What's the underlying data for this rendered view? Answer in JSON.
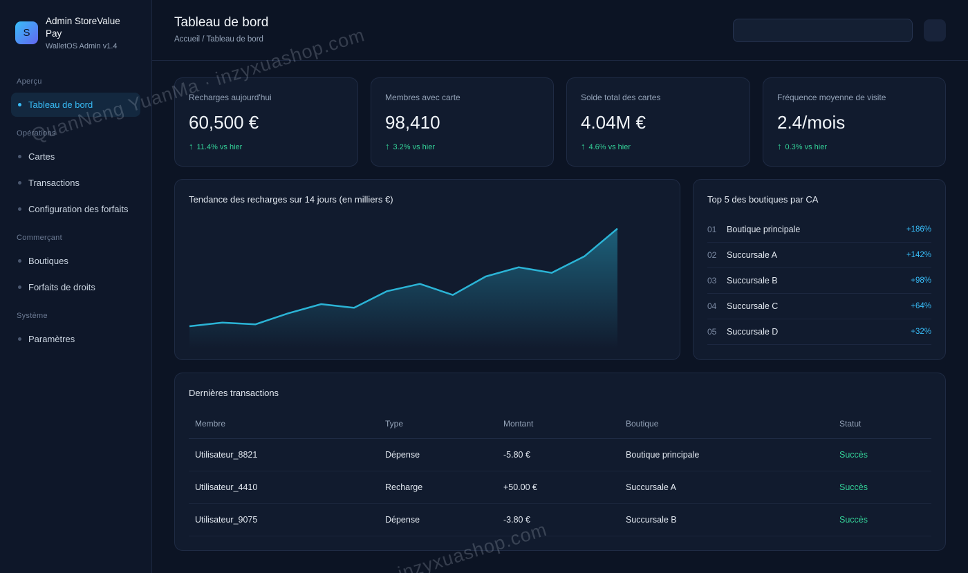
{
  "brand": {
    "logo_letter": "S",
    "name": "Admin StoreValue Pay",
    "subtitle": "WalletOS Admin v1.4"
  },
  "sidebar": {
    "sections": [
      {
        "label": "Aperçu",
        "items": [
          {
            "label": "Tableau de bord",
            "active": true
          }
        ]
      },
      {
        "label": "Opérations",
        "items": [
          {
            "label": "Cartes"
          },
          {
            "label": "Transactions"
          },
          {
            "label": "Configuration des forfaits"
          }
        ]
      },
      {
        "label": "Commerçant",
        "items": [
          {
            "label": "Boutiques"
          },
          {
            "label": "Forfaits de droits"
          }
        ]
      },
      {
        "label": "Système",
        "items": [
          {
            "label": "Paramètres"
          }
        ]
      }
    ]
  },
  "header": {
    "title": "Tableau de bord",
    "breadcrumb": "Accueil / Tableau de bord",
    "search": {
      "value": "",
      "placeholder": ""
    }
  },
  "stats": [
    {
      "label": "Recharges aujourd'hui",
      "value": "60,500 €",
      "delta": "11.4% vs hier",
      "arrow": "↑"
    },
    {
      "label": "Membres avec carte",
      "value": "98,410",
      "delta": "3.2% vs hier",
      "arrow": "↑"
    },
    {
      "label": "Solde total des cartes",
      "value": "4.04M €",
      "delta": "4.6% vs hier",
      "arrow": "↑"
    },
    {
      "label": "Fréquence moyenne de visite",
      "value": "2.4/mois",
      "delta": "0.3% vs hier",
      "arrow": "↑"
    }
  ],
  "trend": {
    "title": "Tendance des recharges sur 14 jours (en milliers €)"
  },
  "chart_data": {
    "type": "area",
    "title": "Tendance des recharges sur 14 jours (en milliers €)",
    "x": [
      1,
      2,
      3,
      4,
      5,
      6,
      7,
      8,
      9,
      10,
      11,
      12,
      13,
      14
    ],
    "values": [
      12,
      14,
      13,
      19,
      24,
      22,
      31,
      35,
      29,
      39,
      44,
      41,
      50,
      65
    ],
    "xlabel": "",
    "ylabel": "",
    "ylim": [
      0,
      75
    ],
    "grid": false,
    "color": "#2bb4d6"
  },
  "top_shops": {
    "title": "Top 5 des boutiques par CA",
    "items": [
      {
        "rank": "01",
        "name": "Boutique principale",
        "pct": "+186%"
      },
      {
        "rank": "02",
        "name": "Succursale A",
        "pct": "+142%"
      },
      {
        "rank": "03",
        "name": "Succursale B",
        "pct": "+98%"
      },
      {
        "rank": "04",
        "name": "Succursale C",
        "pct": "+64%"
      },
      {
        "rank": "05",
        "name": "Succursale D",
        "pct": "+32%"
      }
    ]
  },
  "transactions": {
    "title": "Dernières transactions",
    "columns": [
      "Membre",
      "Type",
      "Montant",
      "Boutique",
      "Statut"
    ],
    "rows": [
      [
        "Utilisateur_8821",
        "Dépense",
        "-5.80 €",
        "Boutique principale",
        "Succès"
      ],
      [
        "Utilisateur_4410",
        "Recharge",
        "+50.00 €",
        "Succursale A",
        "Succès"
      ],
      [
        "Utilisateur_9075",
        "Dépense",
        "-3.80 €",
        "Succursale B",
        "Succès"
      ]
    ]
  },
  "colors": {
    "accent": "#38bdf8",
    "success": "#34d399",
    "background": "#0c1424",
    "card": "#111b2e"
  },
  "watermark": [
    "QuanNeng YuanMa · inzyxuashop.com",
    "inzyxuashop.com"
  ]
}
